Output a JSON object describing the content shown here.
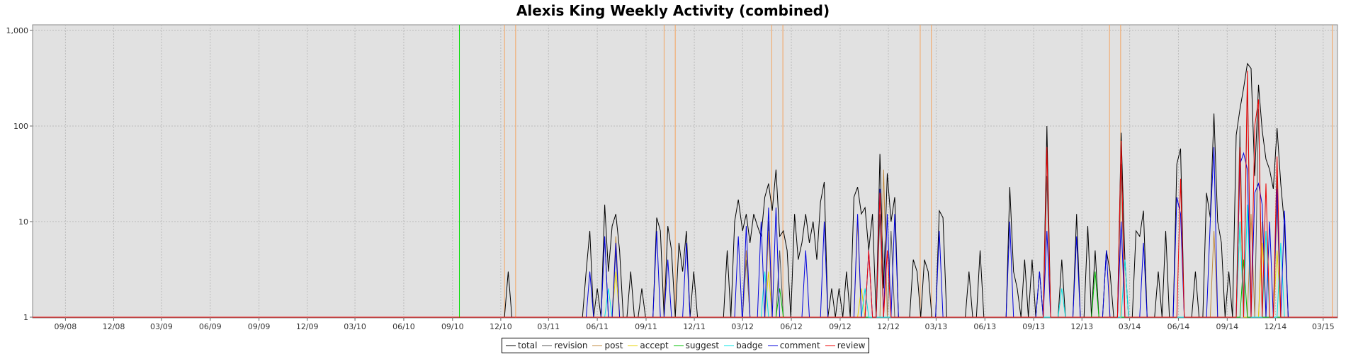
{
  "chart_data": {
    "type": "line",
    "title": "Alexis King Weekly Activity (combined)",
    "xlabel": "",
    "ylabel": "",
    "y_scale": "log",
    "ylim": [
      1,
      1000
    ],
    "y_ticks": [
      {
        "value": 1,
        "label": "1"
      },
      {
        "value": 10,
        "label": "10"
      },
      {
        "value": 100,
        "label": "100"
      },
      {
        "value": 1000,
        "label": "1,000"
      }
    ],
    "x_range": [
      "2008-07-01",
      "2015-03-28"
    ],
    "x_ticks": [
      {
        "date": "2008-09-01",
        "label": "09/08"
      },
      {
        "date": "2008-12-01",
        "label": "12/08"
      },
      {
        "date": "2009-03-01",
        "label": "03/09"
      },
      {
        "date": "2009-06-01",
        "label": "06/09"
      },
      {
        "date": "2009-09-01",
        "label": "09/09"
      },
      {
        "date": "2009-12-01",
        "label": "12/09"
      },
      {
        "date": "2010-03-01",
        "label": "03/10"
      },
      {
        "date": "2010-06-01",
        "label": "06/10"
      },
      {
        "date": "2010-09-01",
        "label": "09/10"
      },
      {
        "date": "2010-12-01",
        "label": "12/10"
      },
      {
        "date": "2011-03-01",
        "label": "03/11"
      },
      {
        "date": "2011-06-01",
        "label": "06/11"
      },
      {
        "date": "2011-09-01",
        "label": "09/11"
      },
      {
        "date": "2011-12-01",
        "label": "12/11"
      },
      {
        "date": "2012-03-01",
        "label": "03/12"
      },
      {
        "date": "2012-06-01",
        "label": "06/12"
      },
      {
        "date": "2012-09-01",
        "label": "09/12"
      },
      {
        "date": "2012-12-01",
        "label": "12/12"
      },
      {
        "date": "2013-03-01",
        "label": "03/13"
      },
      {
        "date": "2013-06-01",
        "label": "06/13"
      },
      {
        "date": "2013-09-01",
        "label": "09/13"
      },
      {
        "date": "2013-12-01",
        "label": "12/13"
      },
      {
        "date": "2014-03-01",
        "label": "03/14"
      },
      {
        "date": "2014-06-01",
        "label": "06/14"
      },
      {
        "date": "2014-09-01",
        "label": "09/14"
      },
      {
        "date": "2014-12-01",
        "label": "12/14"
      },
      {
        "date": "2015-03-01",
        "label": "03/15"
      }
    ],
    "grid": true,
    "legend_position": "bottom-center",
    "markers": [
      {
        "date": "2010-09-14",
        "color": "#00dd00"
      },
      {
        "date": "2010-12-08",
        "color": "#f4a460"
      },
      {
        "date": "2010-12-29",
        "color": "#f4a460"
      },
      {
        "date": "2011-10-05",
        "color": "#f4a460"
      },
      {
        "date": "2011-10-26",
        "color": "#f4a460"
      },
      {
        "date": "2012-04-25",
        "color": "#f4a460"
      },
      {
        "date": "2012-05-16",
        "color": "#f4a460"
      },
      {
        "date": "2013-01-30",
        "color": "#f4a460"
      },
      {
        "date": "2013-02-20",
        "color": "#f4a460"
      },
      {
        "date": "2014-01-22",
        "color": "#f4a460"
      },
      {
        "date": "2014-02-12",
        "color": "#f4a460"
      },
      {
        "date": "2015-03-18",
        "color": "#f4a460"
      }
    ],
    "series": [
      {
        "name": "total",
        "color": "#000000",
        "points": [
          [
            "2010-12-15",
            3
          ],
          [
            "2011-05-11",
            3
          ],
          [
            "2011-05-18",
            8
          ],
          [
            "2011-06-01",
            2
          ],
          [
            "2011-06-15",
            15
          ],
          [
            "2011-06-22",
            3
          ],
          [
            "2011-06-29",
            9
          ],
          [
            "2011-07-06",
            12
          ],
          [
            "2011-07-13",
            5
          ],
          [
            "2011-08-03",
            3
          ],
          [
            "2011-08-24",
            2
          ],
          [
            "2011-09-21",
            11
          ],
          [
            "2011-09-28",
            8
          ],
          [
            "2011-10-12",
            9
          ],
          [
            "2011-10-19",
            5
          ],
          [
            "2011-11-02",
            6
          ],
          [
            "2011-11-09",
            3
          ],
          [
            "2011-11-16",
            8
          ],
          [
            "2011-11-30",
            3
          ],
          [
            "2012-02-01",
            5
          ],
          [
            "2012-02-15",
            10
          ],
          [
            "2012-02-22",
            17
          ],
          [
            "2012-03-01",
            8
          ],
          [
            "2012-03-08",
            12
          ],
          [
            "2012-03-15",
            6
          ],
          [
            "2012-03-22",
            12
          ],
          [
            "2012-03-29",
            9
          ],
          [
            "2012-04-05",
            7
          ],
          [
            "2012-04-12",
            18
          ],
          [
            "2012-04-19",
            25
          ],
          [
            "2012-04-26",
            13
          ],
          [
            "2012-05-03",
            35
          ],
          [
            "2012-05-10",
            7
          ],
          [
            "2012-05-17",
            8
          ],
          [
            "2012-05-24",
            5
          ],
          [
            "2012-06-07",
            12
          ],
          [
            "2012-06-14",
            4
          ],
          [
            "2012-06-21",
            6
          ],
          [
            "2012-06-28",
            12
          ],
          [
            "2012-07-05",
            6
          ],
          [
            "2012-07-12",
            10
          ],
          [
            "2012-07-19",
            4
          ],
          [
            "2012-07-26",
            16
          ],
          [
            "2012-08-02",
            26
          ],
          [
            "2012-08-16",
            2
          ],
          [
            "2012-08-30",
            2
          ],
          [
            "2012-09-13",
            3
          ],
          [
            "2012-09-27",
            18
          ],
          [
            "2012-10-04",
            23
          ],
          [
            "2012-10-11",
            12
          ],
          [
            "2012-10-18",
            14
          ],
          [
            "2012-10-25",
            5
          ],
          [
            "2012-11-01",
            12
          ],
          [
            "2012-11-15",
            51
          ],
          [
            "2012-11-22",
            2
          ],
          [
            "2012-11-29",
            32
          ],
          [
            "2012-12-06",
            10
          ],
          [
            "2012-12-13",
            18
          ],
          [
            "2013-01-17",
            4
          ],
          [
            "2013-01-24",
            3
          ],
          [
            "2013-02-07",
            4
          ],
          [
            "2013-02-14",
            3
          ],
          [
            "2013-03-07",
            13
          ],
          [
            "2013-03-14",
            11
          ],
          [
            "2013-05-02",
            3
          ],
          [
            "2013-05-23",
            5
          ],
          [
            "2013-07-18",
            23
          ],
          [
            "2013-07-25",
            3
          ],
          [
            "2013-08-01",
            2
          ],
          [
            "2013-08-15",
            4
          ],
          [
            "2013-08-29",
            4
          ],
          [
            "2013-09-12",
            3
          ],
          [
            "2013-09-26",
            100
          ],
          [
            "2013-10-24",
            4
          ],
          [
            "2013-11-21",
            12
          ],
          [
            "2013-12-12",
            9
          ],
          [
            "2013-12-26",
            5
          ],
          [
            "2014-01-16",
            5
          ],
          [
            "2014-01-23",
            3
          ],
          [
            "2014-02-13",
            85
          ],
          [
            "2014-02-20",
            4
          ],
          [
            "2014-03-13",
            8
          ],
          [
            "2014-03-20",
            7
          ],
          [
            "2014-03-27",
            13
          ],
          [
            "2014-04-24",
            3
          ],
          [
            "2014-05-08",
            8
          ],
          [
            "2014-05-29",
            40
          ],
          [
            "2014-06-05",
            58
          ],
          [
            "2014-07-03",
            3
          ],
          [
            "2014-07-24",
            20
          ],
          [
            "2014-07-31",
            11
          ],
          [
            "2014-08-07",
            135
          ],
          [
            "2014-08-14",
            10
          ],
          [
            "2014-08-21",
            6
          ],
          [
            "2014-09-04",
            3
          ],
          [
            "2014-09-18",
            80
          ],
          [
            "2014-09-25",
            150
          ],
          [
            "2014-10-02",
            250
          ],
          [
            "2014-10-09",
            450
          ],
          [
            "2014-10-16",
            400
          ],
          [
            "2014-10-23",
            30
          ],
          [
            "2014-10-30",
            270
          ],
          [
            "2014-11-06",
            90
          ],
          [
            "2014-11-13",
            45
          ],
          [
            "2014-11-20",
            35
          ],
          [
            "2014-11-27",
            22
          ],
          [
            "2014-12-04",
            95
          ],
          [
            "2014-12-11",
            25
          ],
          [
            "2014-12-18",
            9
          ]
        ]
      },
      {
        "name": "revision",
        "color": "#555555",
        "points": [
          [
            "2011-06-15",
            7
          ],
          [
            "2011-07-06",
            5
          ],
          [
            "2012-03-08",
            4
          ],
          [
            "2012-04-19",
            10
          ],
          [
            "2012-05-10",
            5
          ],
          [
            "2012-11-15",
            12
          ],
          [
            "2012-12-06",
            8
          ],
          [
            "2013-09-26",
            30
          ],
          [
            "2014-02-13",
            40
          ],
          [
            "2014-09-25",
            100
          ],
          [
            "2014-10-09",
            300
          ],
          [
            "2014-10-30",
            150
          ],
          [
            "2014-12-04",
            30
          ]
        ]
      },
      {
        "name": "post",
        "color": "#c08a3e",
        "points": [
          [
            "2011-07-06",
            7
          ],
          [
            "2012-03-08",
            5
          ],
          [
            "2012-04-19",
            8
          ],
          [
            "2012-10-04",
            10
          ],
          [
            "2012-11-22",
            35
          ],
          [
            "2014-08-07",
            8
          ],
          [
            "2014-09-25",
            40
          ],
          [
            "2014-10-16",
            12
          ],
          [
            "2014-11-06",
            10
          ],
          [
            "2014-12-04",
            15
          ]
        ]
      },
      {
        "name": "accept",
        "color": "#e6d200",
        "points": [
          [
            "2011-07-06",
            3
          ],
          [
            "2012-04-19",
            3
          ],
          [
            "2012-10-11",
            2
          ],
          [
            "2014-09-25",
            10
          ],
          [
            "2014-11-06",
            6
          ],
          [
            "2014-12-04",
            5
          ]
        ]
      },
      {
        "name": "suggest",
        "color": "#00c000",
        "points": [
          [
            "2012-05-10",
            2
          ],
          [
            "2013-12-26",
            3
          ],
          [
            "2014-10-02",
            4
          ]
        ]
      },
      {
        "name": "badge",
        "color": "#00e5e5",
        "points": [
          [
            "2011-06-22",
            2
          ],
          [
            "2012-04-12",
            3
          ],
          [
            "2012-10-18",
            2
          ],
          [
            "2013-10-24",
            2
          ],
          [
            "2014-02-20",
            4
          ],
          [
            "2014-09-25",
            10
          ],
          [
            "2014-10-09",
            15
          ],
          [
            "2014-11-13",
            8
          ],
          [
            "2014-12-11",
            6
          ]
        ]
      },
      {
        "name": "comment",
        "color": "#0000dd",
        "points": [
          [
            "2011-05-18",
            3
          ],
          [
            "2011-06-15",
            7
          ],
          [
            "2011-07-06",
            6
          ],
          [
            "2011-09-21",
            8
          ],
          [
            "2011-10-12",
            4
          ],
          [
            "2011-11-16",
            6
          ],
          [
            "2012-02-22",
            7
          ],
          [
            "2012-03-08",
            9
          ],
          [
            "2012-04-05",
            10
          ],
          [
            "2012-04-19",
            14
          ],
          [
            "2012-05-03",
            14
          ],
          [
            "2012-06-28",
            5
          ],
          [
            "2012-08-02",
            10
          ],
          [
            "2012-10-04",
            12
          ],
          [
            "2012-10-25",
            5
          ],
          [
            "2012-11-15",
            22
          ],
          [
            "2012-11-29",
            12
          ],
          [
            "2012-12-13",
            12
          ],
          [
            "2013-03-07",
            8
          ],
          [
            "2013-07-18",
            10
          ],
          [
            "2013-09-12",
            3
          ],
          [
            "2013-09-26",
            8
          ],
          [
            "2013-11-21",
            7
          ],
          [
            "2014-01-16",
            5
          ],
          [
            "2014-02-13",
            10
          ],
          [
            "2014-03-27",
            6
          ],
          [
            "2014-05-29",
            18
          ],
          [
            "2014-06-05",
            12
          ],
          [
            "2014-07-31",
            10
          ],
          [
            "2014-08-07",
            60
          ],
          [
            "2014-09-25",
            40
          ],
          [
            "2014-10-02",
            52
          ],
          [
            "2014-10-09",
            35
          ],
          [
            "2014-10-23",
            20
          ],
          [
            "2014-10-30",
            25
          ],
          [
            "2014-11-06",
            15
          ],
          [
            "2014-11-20",
            10
          ],
          [
            "2014-12-04",
            22
          ],
          [
            "2014-12-18",
            13
          ]
        ]
      },
      {
        "name": "review",
        "color": "#ee0000",
        "points": [
          [
            "2012-10-25",
            5
          ],
          [
            "2012-11-15",
            20
          ],
          [
            "2012-11-29",
            5
          ],
          [
            "2013-09-26",
            60
          ],
          [
            "2014-02-13",
            70
          ],
          [
            "2014-06-05",
            28
          ],
          [
            "2014-09-25",
            60
          ],
          [
            "2014-10-09",
            380
          ],
          [
            "2014-10-23",
            100
          ],
          [
            "2014-10-30",
            190
          ],
          [
            "2014-11-13",
            25
          ],
          [
            "2014-12-04",
            48
          ]
        ]
      }
    ]
  }
}
